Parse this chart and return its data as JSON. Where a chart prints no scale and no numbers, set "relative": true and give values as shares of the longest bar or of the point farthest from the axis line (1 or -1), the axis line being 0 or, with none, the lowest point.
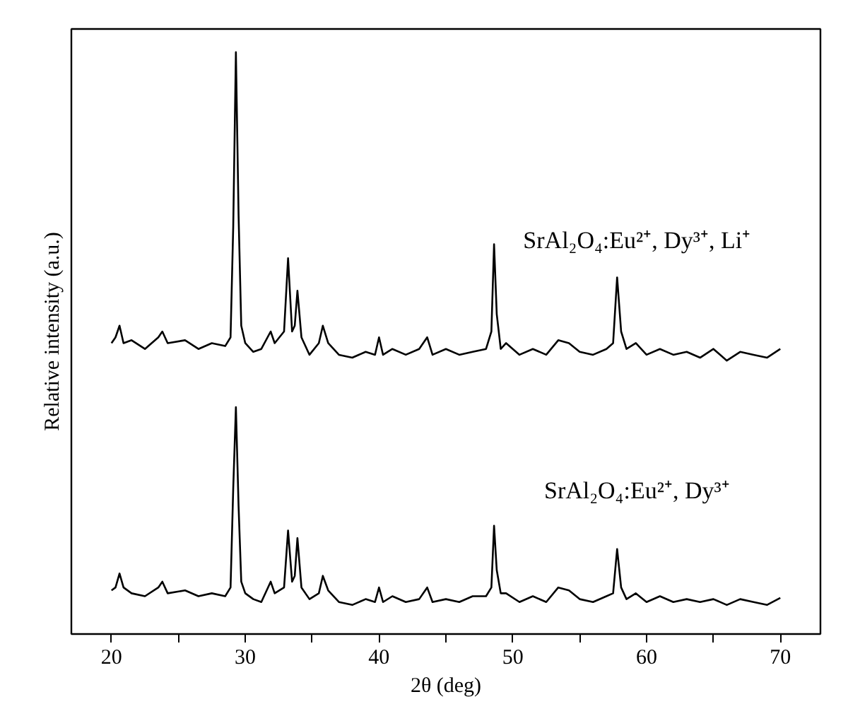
{
  "chart_data": {
    "type": "line",
    "relative": true,
    "xlabel": "2θ (deg)",
    "ylabel": "Relative intensity (a.u.)",
    "x": [
      20,
      20.3,
      20.6,
      20.9,
      21.5,
      22.5,
      23.5,
      23.8,
      24.2,
      25.5,
      26.5,
      27.5,
      28.5,
      28.9,
      29.1,
      29.3,
      29.5,
      29.7,
      30.0,
      30.6,
      31.2,
      31.9,
      32.2,
      32.9,
      33.2,
      33.5,
      33.7,
      33.9,
      34.2,
      34.8,
      35.5,
      35.8,
      36.2,
      37.0,
      38.0,
      39.0,
      39.7,
      40.0,
      40.3,
      41.0,
      42.0,
      43.0,
      43.6,
      44.0,
      45.0,
      46.0,
      47.0,
      48.0,
      48.4,
      48.6,
      48.8,
      49.1,
      49.5,
      50.5,
      51.5,
      52.5,
      53.4,
      54.2,
      55.0,
      56.0,
      57.0,
      57.5,
      57.8,
      58.1,
      58.5,
      59.2,
      60.0,
      61.0,
      62.0,
      63.0,
      64.0,
      65.0,
      66.0,
      67.0,
      68.0,
      69.0,
      70.0
    ],
    "series": [
      {
        "name": "SrAl₂O₄:Eu²⁺, Dy³⁺, Li⁺",
        "color": "#000000",
        "values": [
          0.5,
          0.51,
          0.53,
          0.5,
          0.505,
          0.49,
          0.51,
          0.52,
          0.5,
          0.505,
          0.49,
          0.5,
          0.495,
          0.51,
          0.7,
          1.0,
          0.72,
          0.53,
          0.5,
          0.485,
          0.49,
          0.52,
          0.5,
          0.52,
          0.646,
          0.52,
          0.53,
          0.59,
          0.51,
          0.48,
          0.5,
          0.53,
          0.5,
          0.48,
          0.475,
          0.485,
          0.48,
          0.51,
          0.48,
          0.49,
          0.48,
          0.49,
          0.51,
          0.48,
          0.49,
          0.48,
          0.485,
          0.49,
          0.52,
          0.67,
          0.55,
          0.49,
          0.5,
          0.48,
          0.49,
          0.48,
          0.505,
          0.5,
          0.485,
          0.48,
          0.49,
          0.5,
          0.613,
          0.52,
          0.49,
          0.5,
          0.48,
          0.49,
          0.48,
          0.485,
          0.475,
          0.49,
          0.47,
          0.485,
          0.48,
          0.475,
          0.49
        ]
      },
      {
        "name": "SrAl₂O₄:Eu²⁺, Dy³⁺",
        "color": "#000000",
        "values": [
          0.075,
          0.08,
          0.104,
          0.08,
          0.07,
          0.065,
          0.08,
          0.09,
          0.07,
          0.075,
          0.065,
          0.07,
          0.065,
          0.08,
          0.25,
          0.39,
          0.22,
          0.09,
          0.07,
          0.06,
          0.055,
          0.09,
          0.07,
          0.08,
          0.178,
          0.09,
          0.1,
          0.165,
          0.08,
          0.06,
          0.07,
          0.1,
          0.075,
          0.055,
          0.05,
          0.06,
          0.055,
          0.08,
          0.055,
          0.065,
          0.055,
          0.06,
          0.08,
          0.055,
          0.06,
          0.055,
          0.065,
          0.065,
          0.08,
          0.186,
          0.11,
          0.07,
          0.07,
          0.055,
          0.065,
          0.055,
          0.08,
          0.075,
          0.06,
          0.055,
          0.065,
          0.07,
          0.146,
          0.08,
          0.06,
          0.07,
          0.055,
          0.065,
          0.055,
          0.06,
          0.055,
          0.06,
          0.05,
          0.06,
          0.055,
          0.05,
          0.062
        ]
      }
    ],
    "xlim": [
      17,
      73
    ],
    "xticks": [
      20,
      {
        "value": 25,
        "label": null
      },
      30,
      {
        "value": 35,
        "label": null
      },
      40,
      {
        "value": 45,
        "label": null
      },
      50,
      {
        "value": 55,
        "label": null
      },
      60,
      {
        "value": 65,
        "label": null
      },
      70
    ],
    "grid": false,
    "legend": false,
    "marker": "none",
    "line_style": "solid"
  }
}
